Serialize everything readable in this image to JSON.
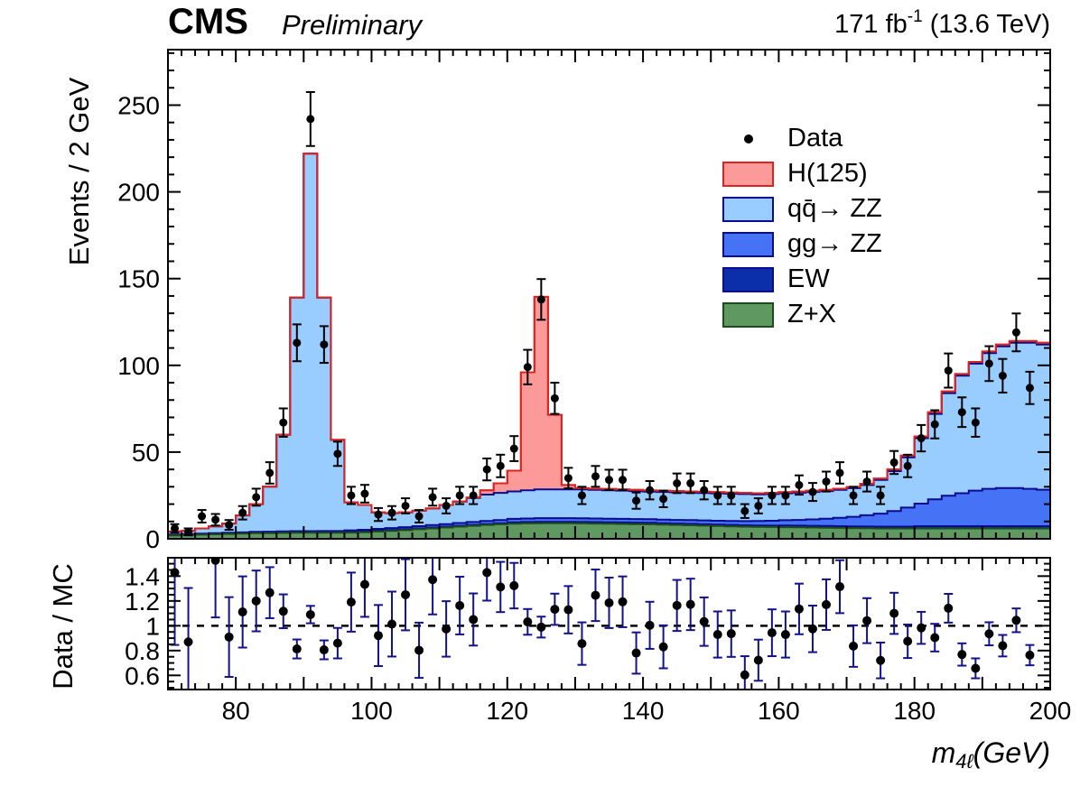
{
  "header": {
    "experiment": "CMS",
    "status": "Preliminary",
    "lumi_main": "171 fb",
    "lumi_exp": "-1",
    "lumi_energy": " (13.6 TeV)"
  },
  "axes": {
    "main_y_title": "Events / 2 GeV",
    "ratio_y_title": "Data / MC",
    "x_title_base": "m",
    "x_title_sub": "4ℓ",
    "x_title_unit": "(GeV)"
  },
  "legend": {
    "items": [
      {
        "label": "Data",
        "type": "marker",
        "marker_color": "#000000"
      },
      {
        "label": "H(125)",
        "type": "box",
        "fill": "#FC9999",
        "border": "#DB2420"
      },
      {
        "label": "qq̄→ ZZ",
        "type": "box",
        "fill": "#99CCFF",
        "border": "#0B0B8F"
      },
      {
        "label": "gg→ ZZ",
        "type": "box",
        "fill": "#4673F5",
        "border": "#0B0B8F"
      },
      {
        "label": "EW",
        "type": "box",
        "fill": "#0B2FA8",
        "border": "#0B0B8F"
      },
      {
        "label": "Z+X",
        "type": "box",
        "fill": "#5F9860",
        "border": "#1A4D17"
      }
    ]
  },
  "chart_data": {
    "type": "bar",
    "variant": "stacked-step-histogram-with-data-points-and-ratio-panel",
    "title": "CMS Preliminary",
    "lumi_label": "171 fb^-1 (13.6 TeV)",
    "xlabel": "m_4l (GeV)",
    "ylabel": "Events / 2 GeV",
    "ratio_ylabel": "Data / MC",
    "xlim": [
      70,
      200
    ],
    "ylim": [
      0,
      282
    ],
    "ratio_ylim": [
      0.486,
      1.548
    ],
    "x_start": 70,
    "bin_width": 2,
    "x_ticks": {
      "values": [
        80,
        100,
        120,
        140,
        160,
        180,
        200
      ],
      "labels": [
        "80",
        "100",
        "120",
        "140",
        "160",
        "180",
        "200"
      ],
      "major_step": 10,
      "minor_step": 2
    },
    "y_ticks": {
      "values": [
        0,
        50,
        100,
        150,
        200,
        250
      ],
      "labels": [
        "0",
        "50",
        "100",
        "150",
        "200",
        "250"
      ],
      "minor_step": 10
    },
    "ratio_ticks": {
      "values": [
        0.6,
        0.8,
        1.0,
        1.2,
        1.4
      ],
      "labels": [
        "0.6",
        "0.8",
        "1",
        "1.2",
        "1.4"
      ],
      "minor_step": 0.05
    },
    "grid": false,
    "legend_position": "upper-right-inside",
    "series": [
      {
        "name": "Z+X",
        "fill": "#5F9860",
        "line": "#1A4D17",
        "values": [
          2.0,
          2.2,
          2.4,
          2.6,
          2.8,
          3.0,
          3.2,
          3.3,
          3.4,
          3.5,
          3.5,
          3.5,
          3.5,
          3.6,
          3.8,
          4.2,
          4.6,
          5.0,
          5.5,
          6.0,
          6.5,
          7.0,
          7.5,
          8.0,
          8.4,
          8.7,
          8.9,
          9.0,
          9.0,
          9.0,
          8.9,
          8.8,
          8.7,
          8.6,
          8.5,
          8.4,
          8.2,
          8.0,
          7.8,
          7.6,
          7.4,
          7.2,
          7.0,
          6.9,
          6.8,
          6.7,
          6.6,
          6.5,
          6.4,
          6.3,
          6.2,
          6.1,
          6.0,
          6.0,
          6.0,
          6.0,
          6.0,
          6.0,
          6.0,
          6.0,
          6.0,
          6.0,
          6.0,
          6.0,
          6.0
        ]
      },
      {
        "name": "EW",
        "fill": "#0B2FA8",
        "line": "#0B0B8F",
        "values": [
          0.3,
          0.3,
          0.3,
          0.3,
          0.3,
          0.3,
          0.3,
          0.3,
          0.3,
          0.3,
          0.3,
          0.3,
          0.3,
          0.5,
          0.5,
          0.5,
          0.5,
          0.5,
          0.5,
          0.5,
          0.5,
          0.5,
          0.5,
          0.5,
          0.5,
          0.8,
          0.8,
          0.8,
          0.8,
          0.8,
          0.8,
          0.8,
          0.8,
          0.8,
          0.8,
          0.8,
          0.8,
          0.8,
          0.8,
          0.8,
          0.8,
          0.8,
          0.8,
          0.8,
          0.8,
          1.0,
          1.0,
          1.0,
          1.0,
          1.0,
          1.0,
          1.0,
          1.0,
          1.0,
          1.0,
          1.3,
          1.3,
          1.3,
          1.3,
          1.3,
          1.3,
          1.3,
          1.3,
          1.3,
          1.3
        ]
      },
      {
        "name": "gg→ ZZ",
        "fill": "#4673F5",
        "line": "#0B0B8F",
        "values": [
          0.2,
          0.2,
          0.3,
          0.3,
          0.4,
          0.4,
          0.5,
          0.5,
          0.6,
          0.6,
          0.6,
          0.7,
          0.7,
          0.8,
          0.9,
          1.0,
          1.1,
          1.2,
          1.3,
          1.4,
          1.5,
          1.6,
          1.7,
          1.8,
          1.9,
          2.0,
          2.0,
          2.1,
          2.1,
          2.1,
          2.1,
          2.1,
          2.1,
          2.1,
          2.1,
          2.1,
          2.1,
          2.1,
          2.2,
          2.2,
          2.2,
          2.3,
          2.4,
          2.6,
          2.8,
          3.0,
          3.3,
          3.7,
          4.2,
          4.8,
          5.5,
          6.5,
          7.5,
          9.0,
          11.0,
          13.0,
          15.5,
          17.5,
          19.0,
          20.5,
          21.5,
          22.0,
          22.0,
          21.5,
          21.0
        ]
      },
      {
        "name": "qq̄→ ZZ",
        "fill": "#99CCFF",
        "line": "#0B0B8F",
        "values": [
          1.7,
          1.9,
          3.0,
          4.0,
          5.3,
          9.8,
          16.0,
          25.9,
          55.7,
          134.6,
          217.6,
          134.5,
          52.5,
          16.1,
          14.3,
          9.5,
          8.6,
          8.5,
          8.9,
          9.6,
          11.0,
          12.4,
          13.8,
          15.2,
          15.7,
          15.8,
          16.3,
          16.6,
          16.6,
          16.6,
          16.7,
          16.5,
          16.4,
          16.3,
          16.1,
          15.9,
          15.9,
          15.9,
          15.8,
          15.8,
          15.8,
          15.7,
          15.6,
          15.3,
          15.4,
          15.5,
          15.7,
          15.8,
          15.9,
          16.1,
          16.5,
          17.4,
          19.5,
          23.0,
          29.0,
          37.7,
          49.2,
          59.2,
          67.7,
          73.2,
          78.2,
          81.7,
          83.7,
          84.2,
          83.7
        ]
      },
      {
        "name": "H(125)",
        "fill": "#FC9999",
        "line": "#DB2420",
        "values": [
          0,
          0,
          0,
          0,
          0,
          0,
          0,
          0,
          0,
          0,
          0,
          0,
          0,
          0,
          0,
          0,
          0,
          0,
          0,
          0,
          0,
          0,
          0.3,
          2.5,
          5.5,
          12.0,
          68.0,
          111.0,
          43.0,
          2.5,
          0.7,
          0.7,
          0.7,
          0.7,
          0.7,
          0.7,
          0.7,
          0.7,
          0.7,
          0.7,
          0.7,
          0.7,
          0.7,
          0.7,
          0.7,
          0.7,
          0.7,
          0.7,
          0.7,
          0.7,
          0.7,
          0.7,
          0.7,
          1.0,
          1.0,
          1.0,
          1.0,
          1.0,
          1.0,
          1.0,
          1.0,
          1.0,
          1.0,
          1.0,
          1.0
        ]
      }
    ],
    "total_outline_color": "#DB2420",
    "data_points": {
      "name": "Data",
      "marker": "filled-circle",
      "color": "#000000",
      "errors": "poisson sqrt(n)",
      "values": [
        6,
        4,
        13,
        11,
        8,
        15,
        24,
        38,
        67,
        113,
        242,
        112,
        49,
        25,
        26,
        14,
        15,
        19,
        13,
        24,
        19,
        25,
        25,
        40,
        42,
        52,
        99,
        138,
        81,
        35,
        25,
        36,
        34,
        34,
        22,
        28,
        23,
        32,
        32,
        28,
        25,
        25,
        16,
        19,
        25,
        25,
        31,
        27,
        33,
        38,
        25,
        33,
        25,
        44,
        42,
        58,
        66,
        97,
        73,
        67,
        101,
        94,
        119,
        87,
        null
      ]
    },
    "ratio": {
      "definition": "data / total MC per bin",
      "reference_line_at": 1.0,
      "reference_line_style": "black dashed",
      "point_color": "#000000",
      "error_color": "#12128A"
    }
  }
}
